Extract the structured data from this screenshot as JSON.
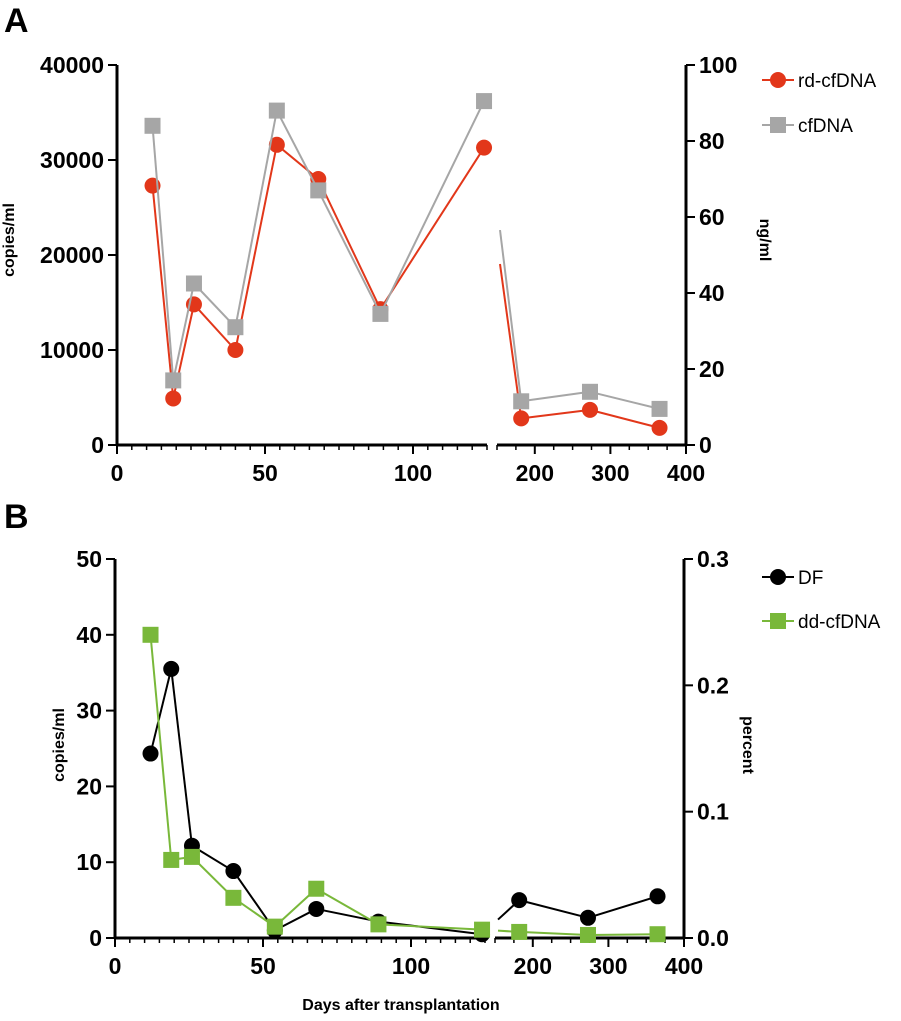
{
  "chart_data": [
    {
      "panel": "A",
      "type": "line",
      "axis_break": {
        "after": 125,
        "resume_at": 150
      },
      "left_axis": {
        "label": "copies/ml",
        "ylim": [
          0,
          40000
        ],
        "ticks": [
          0,
          10000,
          20000,
          30000,
          40000
        ],
        "tick_labels": [
          "0",
          "10000",
          "20000",
          "30000",
          "40000"
        ]
      },
      "right_axis": {
        "label": "ng/ml",
        "ylim": [
          0,
          100
        ],
        "ticks": [
          0,
          20,
          40,
          60,
          80,
          100
        ],
        "tick_labels": [
          "0",
          "20",
          "40",
          "60",
          "80",
          "100"
        ]
      },
      "x_segment_1": {
        "xlim": [
          0,
          125
        ],
        "ticks": [
          0,
          50,
          100
        ],
        "tick_labels": [
          "0",
          "50",
          "100"
        ]
      },
      "x_segment_2": {
        "xlim": [
          150,
          400
        ],
        "ticks": [
          200,
          300,
          400
        ],
        "tick_labels": [
          "200",
          "300",
          "400"
        ]
      },
      "xlabel": "",
      "series": [
        {
          "name": "rd-cfDNA",
          "axis": "left",
          "marker": "circle",
          "color": "#e2371a",
          "x": [
            12,
            19,
            26,
            40,
            54,
            68,
            89,
            124,
            182,
            273,
            365
          ],
          "values": [
            27300,
            4900,
            14800,
            10000,
            31600,
            28000,
            14300,
            31300,
            2800,
            3700,
            1800
          ]
        },
        {
          "name": "cfDNA",
          "axis": "right",
          "marker": "square",
          "color": "#a6a6a6",
          "x": [
            12,
            19,
            26,
            40,
            54,
            68,
            89,
            124,
            182,
            273,
            365
          ],
          "values": [
            84,
            17,
            42.5,
            31,
            88,
            67,
            34.5,
            90.5,
            11.5,
            14,
            9.5
          ]
        }
      ]
    },
    {
      "panel": "B",
      "type": "line",
      "axis_break": {
        "after": 125,
        "resume_at": 150
      },
      "left_axis": {
        "label": "copies/ml",
        "ylim": [
          0,
          50
        ],
        "ticks": [
          0,
          10,
          20,
          30,
          40,
          50
        ],
        "tick_labels": [
          "0",
          "10",
          "20",
          "30",
          "40",
          "50"
        ]
      },
      "right_axis": {
        "label": "percent",
        "ylim": [
          0,
          0.3
        ],
        "ticks": [
          0,
          0.1,
          0.2,
          0.3
        ],
        "tick_labels": [
          "0.0",
          "0.1",
          "0.2",
          "0.3"
        ]
      },
      "x_segment_1": {
        "xlim": [
          0,
          125
        ],
        "ticks": [
          0,
          50,
          100
        ],
        "tick_labels": [
          "0",
          "50",
          "100"
        ]
      },
      "x_segment_2": {
        "xlim": [
          150,
          400
        ],
        "ticks": [
          200,
          300,
          400
        ],
        "tick_labels": [
          "200",
          "300",
          "400"
        ]
      },
      "xlabel": "Days after transplantation",
      "series": [
        {
          "name": "DF",
          "axis": "right",
          "marker": "circle",
          "color": "#000000",
          "x": [
            12,
            19,
            26,
            40,
            54,
            68,
            89,
            124,
            182,
            273,
            365
          ],
          "values": [
            0.146,
            0.213,
            0.073,
            0.053,
            0.006,
            0.023,
            0.013,
            0.003,
            0.03,
            0.016,
            0.033
          ]
        },
        {
          "name": "dd-cfDNA",
          "axis": "left",
          "marker": "square",
          "color": "#79b83a",
          "x": [
            12,
            19,
            26,
            40,
            54,
            68,
            89,
            124,
            182,
            273,
            365
          ],
          "values": [
            40,
            10.3,
            10.7,
            5.3,
            1.5,
            6.5,
            1.8,
            1.1,
            0.8,
            0.4,
            0.5
          ]
        }
      ]
    }
  ]
}
